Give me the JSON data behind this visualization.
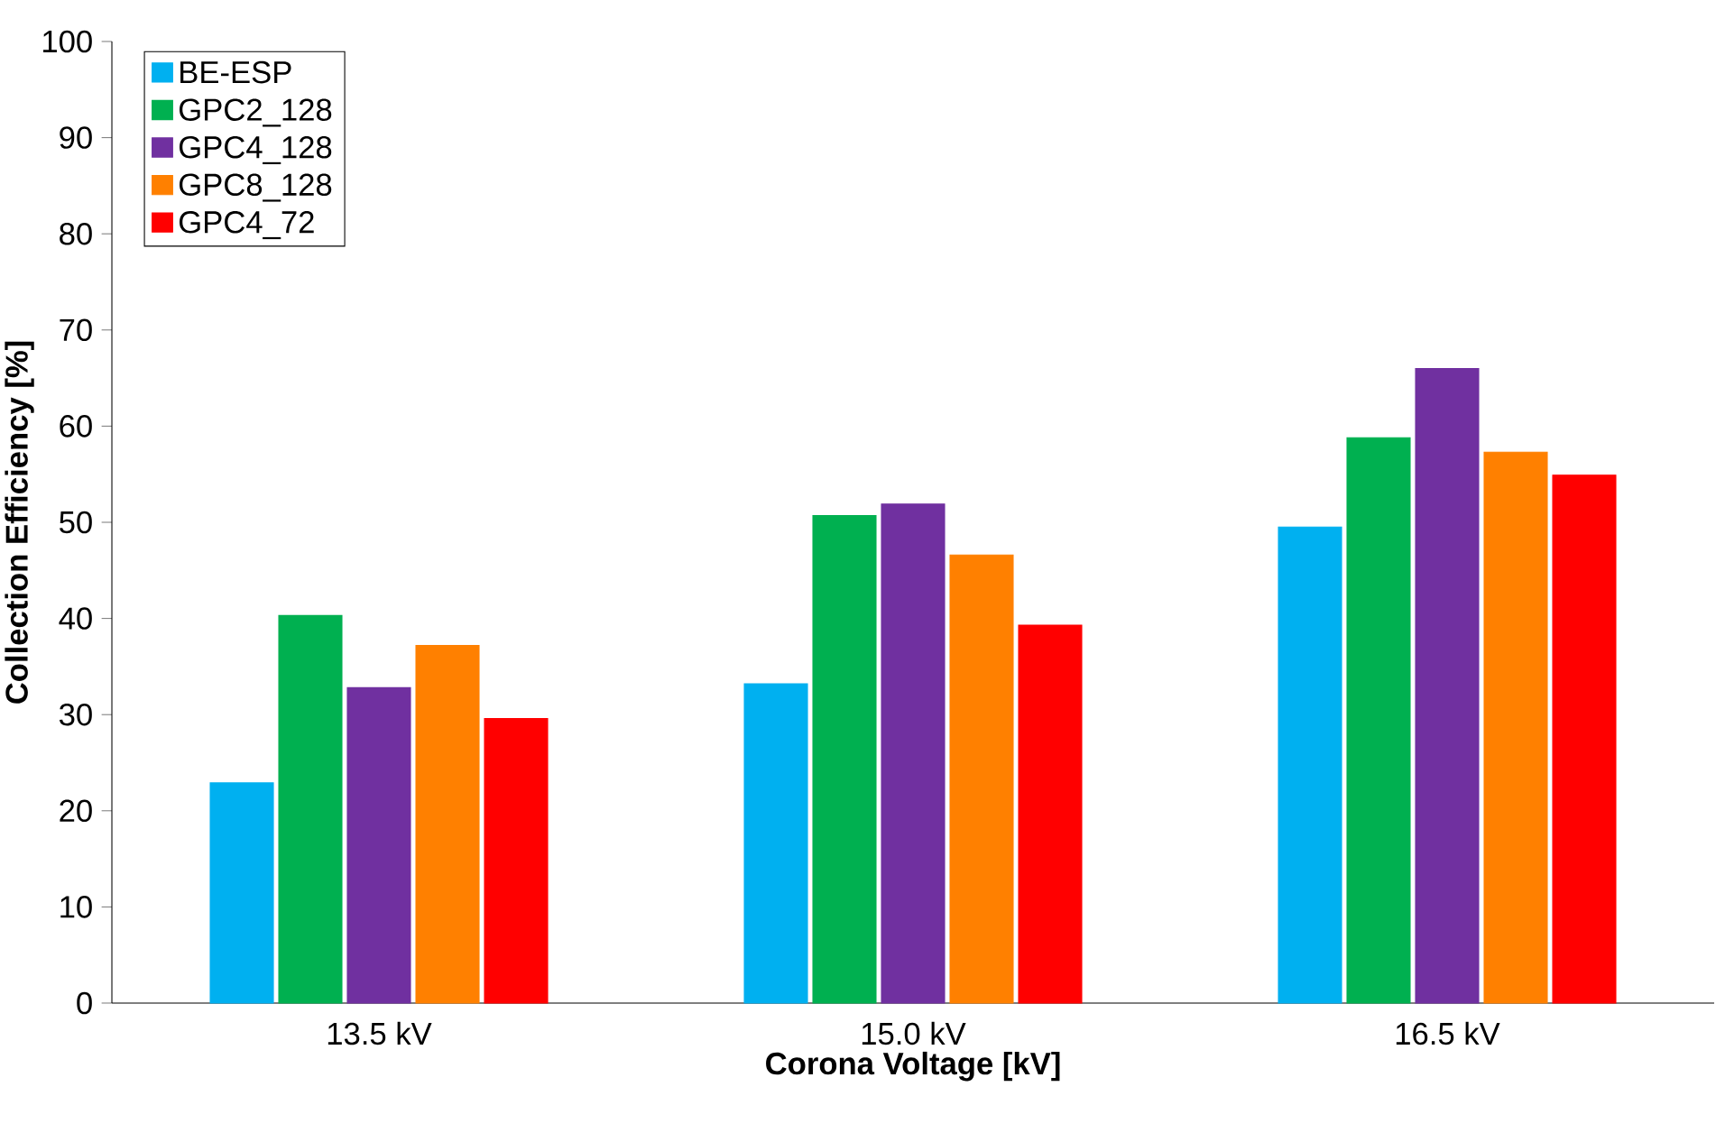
{
  "chart_data": {
    "type": "bar",
    "xlabel": "Corona Voltage [kV]",
    "ylabel": "Collection Efficiency [%]",
    "categories": [
      "13.5 kV",
      "15.0 kV",
      "16.5 kV"
    ],
    "series": [
      {
        "name": "BE-ESP",
        "color": "#00b0f0",
        "values": [
          22.9,
          33.2,
          49.5
        ]
      },
      {
        "name": "GPC2_128",
        "color": "#00b050",
        "values": [
          40.3,
          50.7,
          58.8
        ]
      },
      {
        "name": "GPC4_128",
        "color": "#7030a0",
        "values": [
          32.8,
          51.9,
          66.0
        ]
      },
      {
        "name": "GPC8_128",
        "color": "#ff8000",
        "values": [
          37.2,
          46.6,
          57.3
        ]
      },
      {
        "name": "GPC4_72",
        "color": "#ff0000",
        "values": [
          29.6,
          39.3,
          54.9
        ]
      }
    ],
    "ylim": [
      0,
      100
    ],
    "yticks": [
      0,
      10,
      20,
      30,
      40,
      50,
      60,
      70,
      80,
      90,
      100
    ],
    "grid": false,
    "legend": "top left"
  }
}
